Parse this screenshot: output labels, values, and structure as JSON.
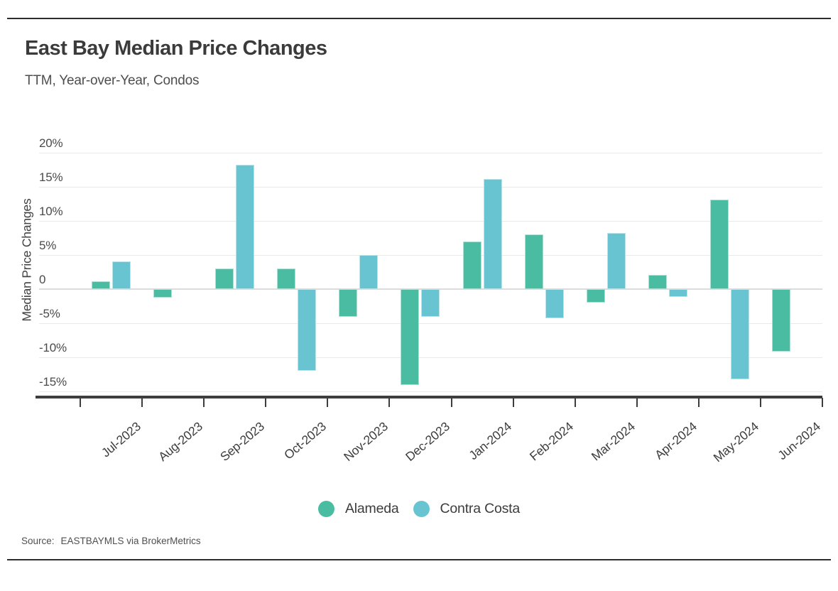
{
  "header": {
    "title": "East Bay Median Price Changes",
    "subtitle": "TTM, Year-over-Year, Condos"
  },
  "source": {
    "label": "Source:",
    "text": "EASTBAYMLS via BrokerMetrics"
  },
  "chart_data": {
    "type": "bar",
    "title": "East Bay Median Price Changes",
    "subtitle": "TTM, Year-over-Year, Condos",
    "xlabel": "",
    "ylabel": "Median Price Changes",
    "ylim": [
      -17,
      20.8
    ],
    "grid": "horizontal",
    "legend_position": "bottom",
    "y_ticks": [
      {
        "value": 20,
        "label": "20%"
      },
      {
        "value": 15,
        "label": "15%"
      },
      {
        "value": 10,
        "label": "10%"
      },
      {
        "value": 5,
        "label": "5%"
      },
      {
        "value": 0,
        "label": "0"
      },
      {
        "value": -5,
        "label": "-5%"
      },
      {
        "value": -10,
        "label": "-10%"
      },
      {
        "value": -15,
        "label": "-15%"
      }
    ],
    "categories": [
      "Jul-2023",
      "Aug-2023",
      "Sep-2023",
      "Oct-2023",
      "Nov-2023",
      "Dec-2023",
      "Jan-2024",
      "Feb-2024",
      "Mar-2024",
      "Apr-2024",
      "May-2024",
      "Jun-2024"
    ],
    "series": [
      {
        "name": "Alameda",
        "color": "#49BCA2",
        "values": [
          1.1,
          -1.3,
          3.0,
          3.0,
          -4.1,
          -14.1,
          7.0,
          8.0,
          -2.0,
          2.1,
          13.1,
          -9.2
        ]
      },
      {
        "name": "Contra Costa",
        "color": "#69C4D1",
        "values": [
          4.1,
          null,
          18.2,
          -12.0,
          5.0,
          -4.1,
          16.1,
          -4.3,
          8.2,
          -1.1,
          -13.2,
          null
        ]
      }
    ]
  },
  "colors": {
    "alameda": "#49BCA2",
    "contra_costa": "#69C4D1",
    "gridline": "#E9E9E9",
    "zero_line": "#DCDCDC",
    "axis": "#3D3D3D",
    "rule": "#2D2D2D",
    "title_text": "#3B3B3B",
    "label_text": "#4A4A4A"
  }
}
